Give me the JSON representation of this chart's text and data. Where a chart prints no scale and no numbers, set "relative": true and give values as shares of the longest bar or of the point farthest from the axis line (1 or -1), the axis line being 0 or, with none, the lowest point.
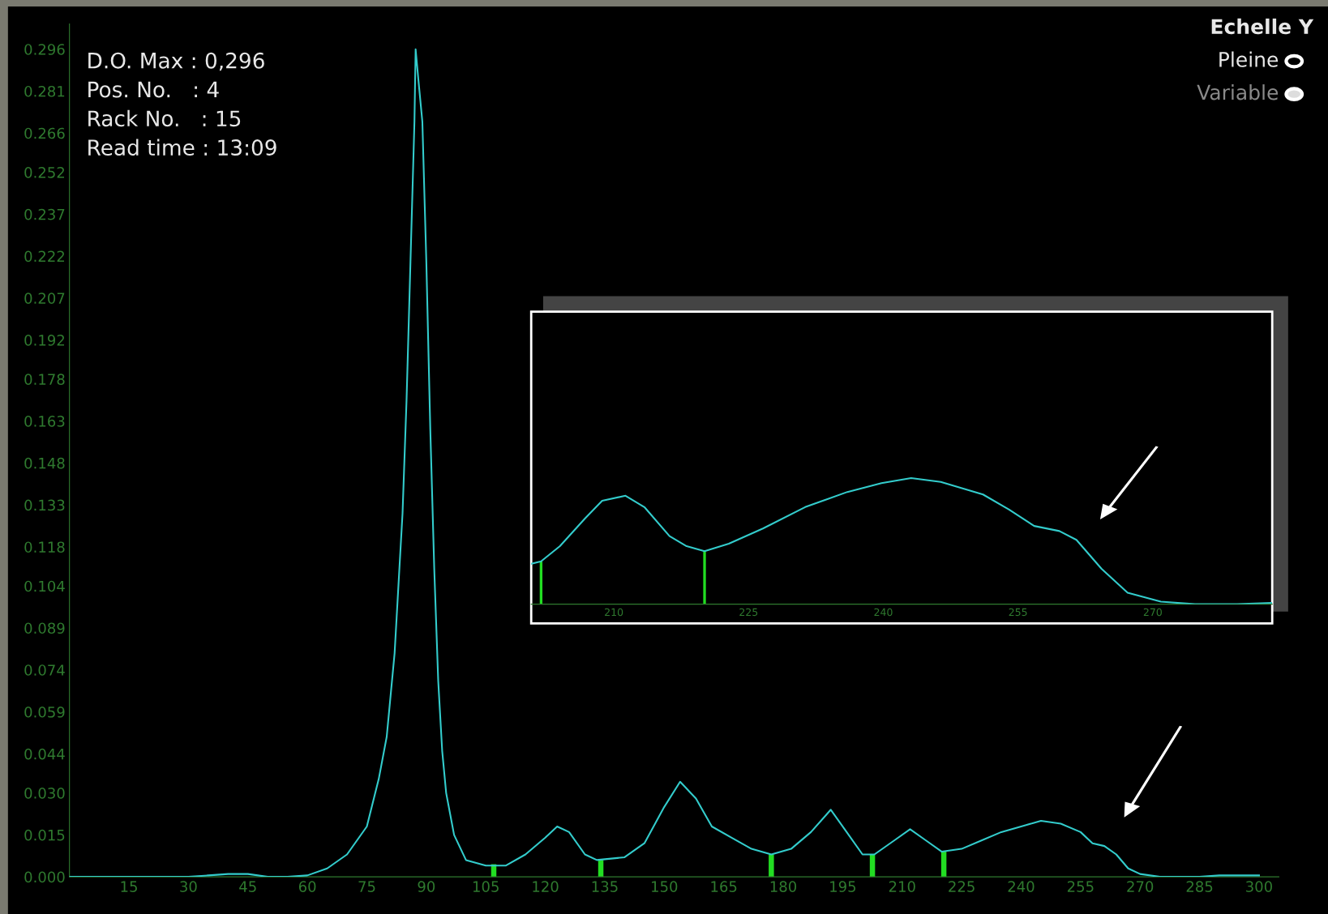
{
  "chart_data": [
    {
      "type": "line",
      "annotations": [
        "D.O. Max : 0,296",
        "Pos. No.   : 4",
        "Rack No.   : 15",
        "Read time : 13:09",
        "Echelle Y",
        "Pleine",
        "Variable"
      ],
      "x": [
        0,
        30,
        35,
        40,
        45,
        50,
        55,
        60,
        65,
        70,
        75,
        78,
        80,
        82,
        84,
        85,
        86,
        87,
        87.3,
        88,
        89,
        90,
        91,
        92,
        93,
        94,
        95,
        97,
        100,
        105,
        110,
        115,
        120,
        123,
        126,
        130,
        133,
        140,
        145,
        150,
        154,
        158,
        162,
        167,
        172,
        177,
        182,
        187,
        192,
        196,
        200,
        203,
        208,
        212,
        216,
        220,
        225,
        230,
        235,
        240,
        245,
        250,
        255,
        258,
        261,
        264,
        267,
        270,
        275,
        285,
        290,
        300
      ],
      "series": [
        {
          "color": "#33cccc",
          "values": [
            0,
            0,
            0.0005,
            0.001,
            0.001,
            0,
            0,
            0.0005,
            0.003,
            0.008,
            0.018,
            0.035,
            0.05,
            0.08,
            0.13,
            0.17,
            0.22,
            0.27,
            0.296,
            0.285,
            0.27,
            0.22,
            0.16,
            0.11,
            0.07,
            0.045,
            0.03,
            0.015,
            0.006,
            0.004,
            0.004,
            0.008,
            0.014,
            0.018,
            0.016,
            0.008,
            0.006,
            0.007,
            0.012,
            0.025,
            0.034,
            0.028,
            0.018,
            0.014,
            0.01,
            0.008,
            0.01,
            0.016,
            0.024,
            0.016,
            0.008,
            0.008,
            0.013,
            0.017,
            0.013,
            0.009,
            0.01,
            0.013,
            0.016,
            0.018,
            0.02,
            0.019,
            0.016,
            0.012,
            0.011,
            0.008,
            0.003,
            0.001,
            0,
            0,
            0.0005,
            0.0005
          ]
        },
        {
          "type": "bar",
          "color": "#22dd22",
          "x": [
            0,
            107,
            134,
            177,
            202.5,
            220.5
          ],
          "values": [
            0,
            0.0045,
            0.006,
            0.008,
            0.008,
            0.009
          ]
        }
      ],
      "xlim": [
        0,
        305
      ],
      "ylim": [
        0,
        0.305
      ],
      "xticks": [
        15,
        30,
        45,
        60,
        75,
        90,
        105,
        120,
        135,
        150,
        165,
        180,
        195,
        210,
        225,
        240,
        255,
        270,
        285,
        300
      ],
      "yticks": [
        {
          "value": 0,
          "label": "0.000"
        },
        0.015,
        {
          "value": 0.03,
          "label": "0.030"
        },
        0.044,
        0.059,
        0.074,
        0.089,
        0.104,
        0.118,
        0.133,
        0.148,
        0.163,
        0.178,
        0.192,
        0.207,
        0.222,
        0.237,
        0.252,
        0.266,
        0.281,
        0.296
      ],
      "grid": false,
      "legend": false
    },
    {
      "type": "line",
      "relative": true,
      "x": [
        200.8,
        201.9,
        204.0,
        206.8,
        208.7,
        211.3,
        213.4,
        216.2,
        218.1,
        220.1,
        222.8,
        226.6,
        231.3,
        236.0,
        239.8,
        243.1,
        246.4,
        251.1,
        254.0,
        256.8,
        259.6,
        261.5,
        264.3,
        267.2,
        270.9,
        274.7,
        279.4,
        283.2
      ],
      "series": [
        {
          "color": "#33cccc",
          "values": [
            0.32,
            0.34,
            0.46,
            0.68,
            0.82,
            0.86,
            0.77,
            0.54,
            0.46,
            0.42,
            0.48,
            0.6,
            0.77,
            0.89,
            0.96,
            1.0,
            0.97,
            0.87,
            0.75,
            0.62,
            0.58,
            0.51,
            0.28,
            0.09,
            0.02,
            0,
            0,
            0.01
          ]
        },
        {
          "type": "bar",
          "color": "#22dd22",
          "x": [
            201.9,
            220.1
          ],
          "values": [
            0.34,
            0.42
          ]
        }
      ],
      "xlim": [
        200.8,
        283.3
      ],
      "xticks": [
        210,
        225,
        240,
        255,
        270
      ],
      "grid": false,
      "legend": false
    }
  ]
}
